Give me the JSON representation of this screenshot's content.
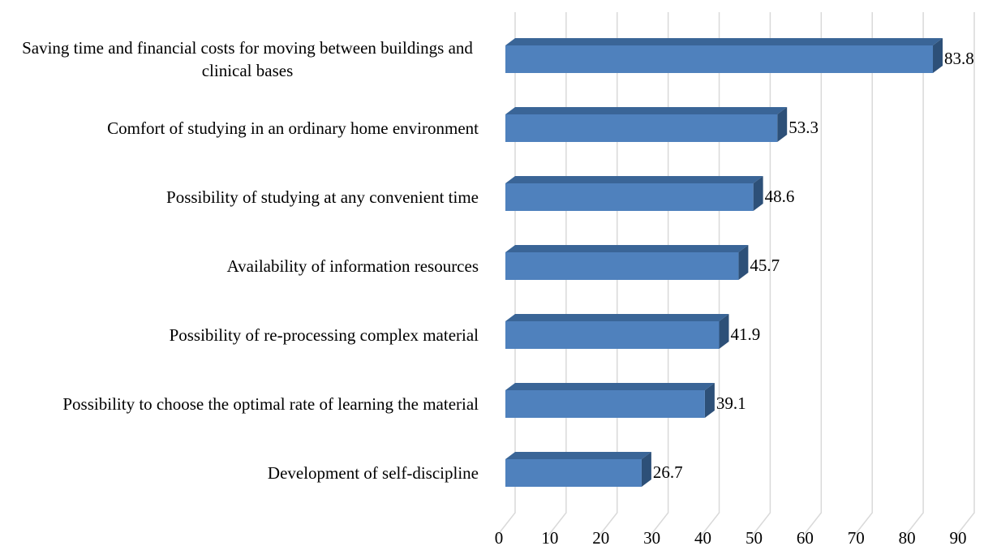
{
  "chart_data": {
    "type": "bar",
    "orientation": "horizontal",
    "categories": [
      "Saving time and financial costs for moving between buildings and clinical bases",
      "Comfort of studying in an ordinary home environment",
      "Possibility of studying at any convenient time",
      "Availability of information resources ",
      "Possibility of re-processing complex material",
      "Possibility to choose the optimal rate of learning the material",
      "Development of self-discipline"
    ],
    "values": [
      83.8,
      53.3,
      48.6,
      45.7,
      41.9,
      39.1,
      26.7
    ],
    "color": "#4f81bd",
    "xlim": [
      0,
      90
    ],
    "xticks": [
      0,
      10,
      20,
      30,
      40,
      50,
      60,
      70,
      80,
      90
    ],
    "grid": true
  }
}
